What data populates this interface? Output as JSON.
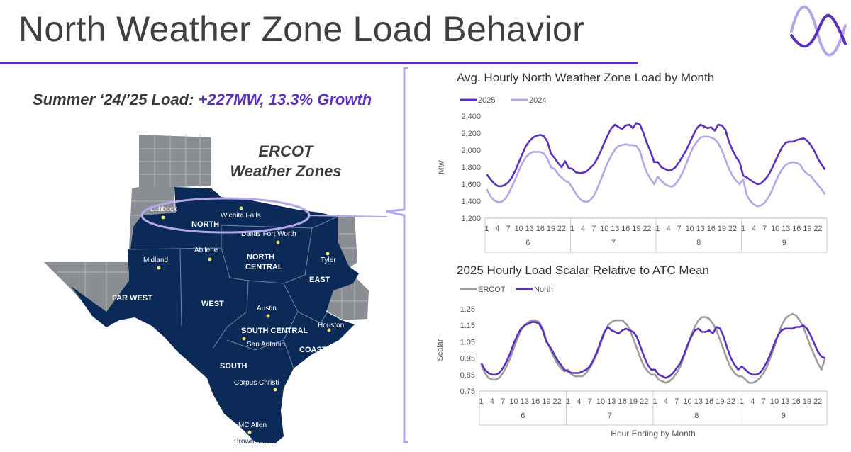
{
  "header": {
    "title": "North Weather Zone Load Behavior",
    "accent_color": "#5b2fc0"
  },
  "summary": {
    "prefix": "Summer ‘24/’25 Load: ",
    "highlight": "+227MW, 13.3% Growth"
  },
  "map": {
    "title_line1": "ERCOT",
    "title_line2": "Weather Zones",
    "zones": [
      "NORTH",
      "NORTH CENTRAL",
      "EAST",
      "FAR WEST",
      "WEST",
      "SOUTH CENTRAL",
      "COAST",
      "SOUTH"
    ],
    "cities": [
      "Lubbock",
      "Wichita Falls",
      "Dallas Fort Worth",
      "Tyler",
      "Midland",
      "Abilene",
      "Austin",
      "Houston",
      "San Antonio",
      "Corpus Christi",
      "MC Allen",
      "Brownsville"
    ],
    "fill_color": "#0b2a57",
    "other_color": "#8a8d92"
  },
  "chart_data": [
    {
      "type": "line",
      "title": "Avg. Hourly North Weather Zone Load by Month",
      "ylabel": "MW",
      "xlabel": "",
      "ylim": [
        1200,
        2400
      ],
      "yticks": [
        "1,200",
        "1,400",
        "1,600",
        "1,800",
        "2,000",
        "2,200",
        "2,400"
      ],
      "ytick_values": [
        1200,
        1400,
        1600,
        1800,
        2000,
        2200,
        2400
      ],
      "hour_ticks": [
        "1",
        "4",
        "7",
        "10",
        "13",
        "16",
        "19",
        "22"
      ],
      "months": [
        "6",
        "7",
        "8",
        "9"
      ],
      "legend": "top-left",
      "series": [
        {
          "name": "2025",
          "color": "#5b2fc0",
          "values": [
            [
              1715,
              1660,
              1610,
              1580,
              1575,
              1590,
              1620,
              1680,
              1760,
              1860,
              1960,
              2050,
              2110,
              2150,
              2170,
              2180,
              2165,
              2100,
              1960,
              1910,
              1850,
              1800,
              1870,
              1790
            ],
            [
              1780,
              1740,
              1730,
              1735,
              1750,
              1790,
              1830,
              1900,
              1990,
              2090,
              2180,
              2260,
              2300,
              2270,
              2250,
              2290,
              2300,
              2260,
              2320,
              2300,
              2200,
              2080,
              1980,
              1860
            ],
            [
              1860,
              1800,
              1780,
              1760,
              1770,
              1800,
              1860,
              1930,
              2000,
              2090,
              2180,
              2260,
              2300,
              2280,
              2260,
              2270,
              2230,
              2300,
              2290,
              2240,
              2100,
              2000,
              1920,
              1860
            ],
            [
              1700,
              1680,
              1650,
              1620,
              1600,
              1610,
              1650,
              1700,
              1780,
              1870,
              1960,
              2040,
              2090,
              2100,
              2100,
              2120,
              2130,
              2140,
              2110,
              2060,
              1990,
              1900,
              1830,
              1770
            ]
          ]
        },
        {
          "name": "2024",
          "color": "#b4a6e8",
          "values": [
            [
              1540,
              1460,
              1410,
              1390,
              1390,
              1420,
              1480,
              1570,
              1660,
              1760,
              1850,
              1920,
              1960,
              1980,
              1980,
              1980,
              1960,
              1900,
              1800,
              1780,
              1720,
              1680,
              1640,
              1620
            ],
            [
              1560,
              1490,
              1430,
              1400,
              1390,
              1410,
              1460,
              1550,
              1650,
              1760,
              1860,
              1940,
              2010,
              2050,
              2060,
              2070,
              2060,
              2060,
              2050,
              1990,
              1840,
              1730,
              1660,
              1600
            ],
            [
              1690,
              1640,
              1600,
              1580,
              1570,
              1600,
              1660,
              1740,
              1840,
              1950,
              2040,
              2100,
              2150,
              2160,
              2160,
              2150,
              2130,
              2080,
              2000,
              1890,
              1780,
              1700,
              1640,
              1600
            ],
            [
              1660,
              1470,
              1400,
              1360,
              1340,
              1350,
              1380,
              1440,
              1520,
              1620,
              1710,
              1780,
              1830,
              1850,
              1860,
              1850,
              1830,
              1760,
              1720,
              1700,
              1640,
              1590,
              1540,
              1480
            ]
          ]
        }
      ]
    },
    {
      "type": "line",
      "title": "2025 Hourly Load Scalar Relative to ATC Mean",
      "ylabel": "Scalar",
      "xlabel": "Hour Ending by Month",
      "ylim": [
        0.75,
        1.25
      ],
      "yticks": [
        "0.75",
        "0.85",
        "0.95",
        "1.05",
        "1.15",
        "1.25"
      ],
      "ytick_values": [
        0.75,
        0.85,
        0.95,
        1.05,
        1.15,
        1.25
      ],
      "hour_ticks": [
        "1",
        "4",
        "7",
        "10",
        "13",
        "16",
        "19",
        "22"
      ],
      "months": [
        "6",
        "7",
        "8",
        "9"
      ],
      "legend": "top-left",
      "series": [
        {
          "name": "ERCOT",
          "color": "#9e9e9e",
          "values": [
            [
              0.91,
              0.86,
              0.83,
              0.82,
              0.82,
              0.83,
              0.86,
              0.9,
              0.95,
              1.01,
              1.07,
              1.12,
              1.15,
              1.17,
              1.18,
              1.18,
              1.17,
              1.13,
              1.06,
              1.01,
              0.96,
              0.92,
              0.89,
              0.87
            ],
            [
              0.88,
              0.85,
              0.84,
              0.84,
              0.84,
              0.86,
              0.89,
              0.93,
              0.98,
              1.04,
              1.1,
              1.15,
              1.17,
              1.18,
              1.18,
              1.18,
              1.16,
              1.13,
              1.07,
              1.01,
              0.95,
              0.9,
              0.87,
              0.85
            ],
            [
              0.85,
              0.82,
              0.81,
              0.8,
              0.81,
              0.83,
              0.86,
              0.9,
              0.96,
              1.02,
              1.09,
              1.14,
              1.18,
              1.2,
              1.2,
              1.19,
              1.16,
              1.12,
              1.06,
              1.0,
              0.94,
              0.89,
              0.86,
              0.84
            ],
            [
              0.84,
              0.82,
              0.8,
              0.8,
              0.81,
              0.83,
              0.86,
              0.9,
              0.96,
              1.02,
              1.09,
              1.15,
              1.19,
              1.21,
              1.22,
              1.21,
              1.18,
              1.14,
              1.08,
              1.02,
              0.97,
              0.92,
              0.88,
              0.95
            ]
          ]
        },
        {
          "name": "North",
          "color": "#5b2fc0",
          "values": [
            [
              0.92,
              0.88,
              0.86,
              0.85,
              0.85,
              0.86,
              0.89,
              0.93,
              0.98,
              1.04,
              1.09,
              1.13,
              1.15,
              1.16,
              1.17,
              1.17,
              1.16,
              1.12,
              1.05,
              1.02,
              0.98,
              0.94,
              0.91,
              0.88
            ],
            [
              0.87,
              0.86,
              0.86,
              0.86,
              0.87,
              0.88,
              0.9,
              0.94,
              0.99,
              1.05,
              1.11,
              1.14,
              1.12,
              1.11,
              1.1,
              1.12,
              1.13,
              1.12,
              1.11,
              1.08,
              1.02,
              0.96,
              0.91,
              0.88
            ],
            [
              0.88,
              0.85,
              0.84,
              0.83,
              0.84,
              0.86,
              0.89,
              0.92,
              0.97,
              1.03,
              1.08,
              1.12,
              1.13,
              1.11,
              1.11,
              1.12,
              1.1,
              1.14,
              1.13,
              1.08,
              1.01,
              0.95,
              0.91,
              0.88
            ],
            [
              0.9,
              0.88,
              0.86,
              0.85,
              0.85,
              0.86,
              0.89,
              0.93,
              0.98,
              1.04,
              1.09,
              1.12,
              1.13,
              1.13,
              1.13,
              1.14,
              1.14,
              1.15,
              1.13,
              1.09,
              1.04,
              0.99,
              0.96,
              0.95
            ]
          ]
        }
      ]
    }
  ]
}
